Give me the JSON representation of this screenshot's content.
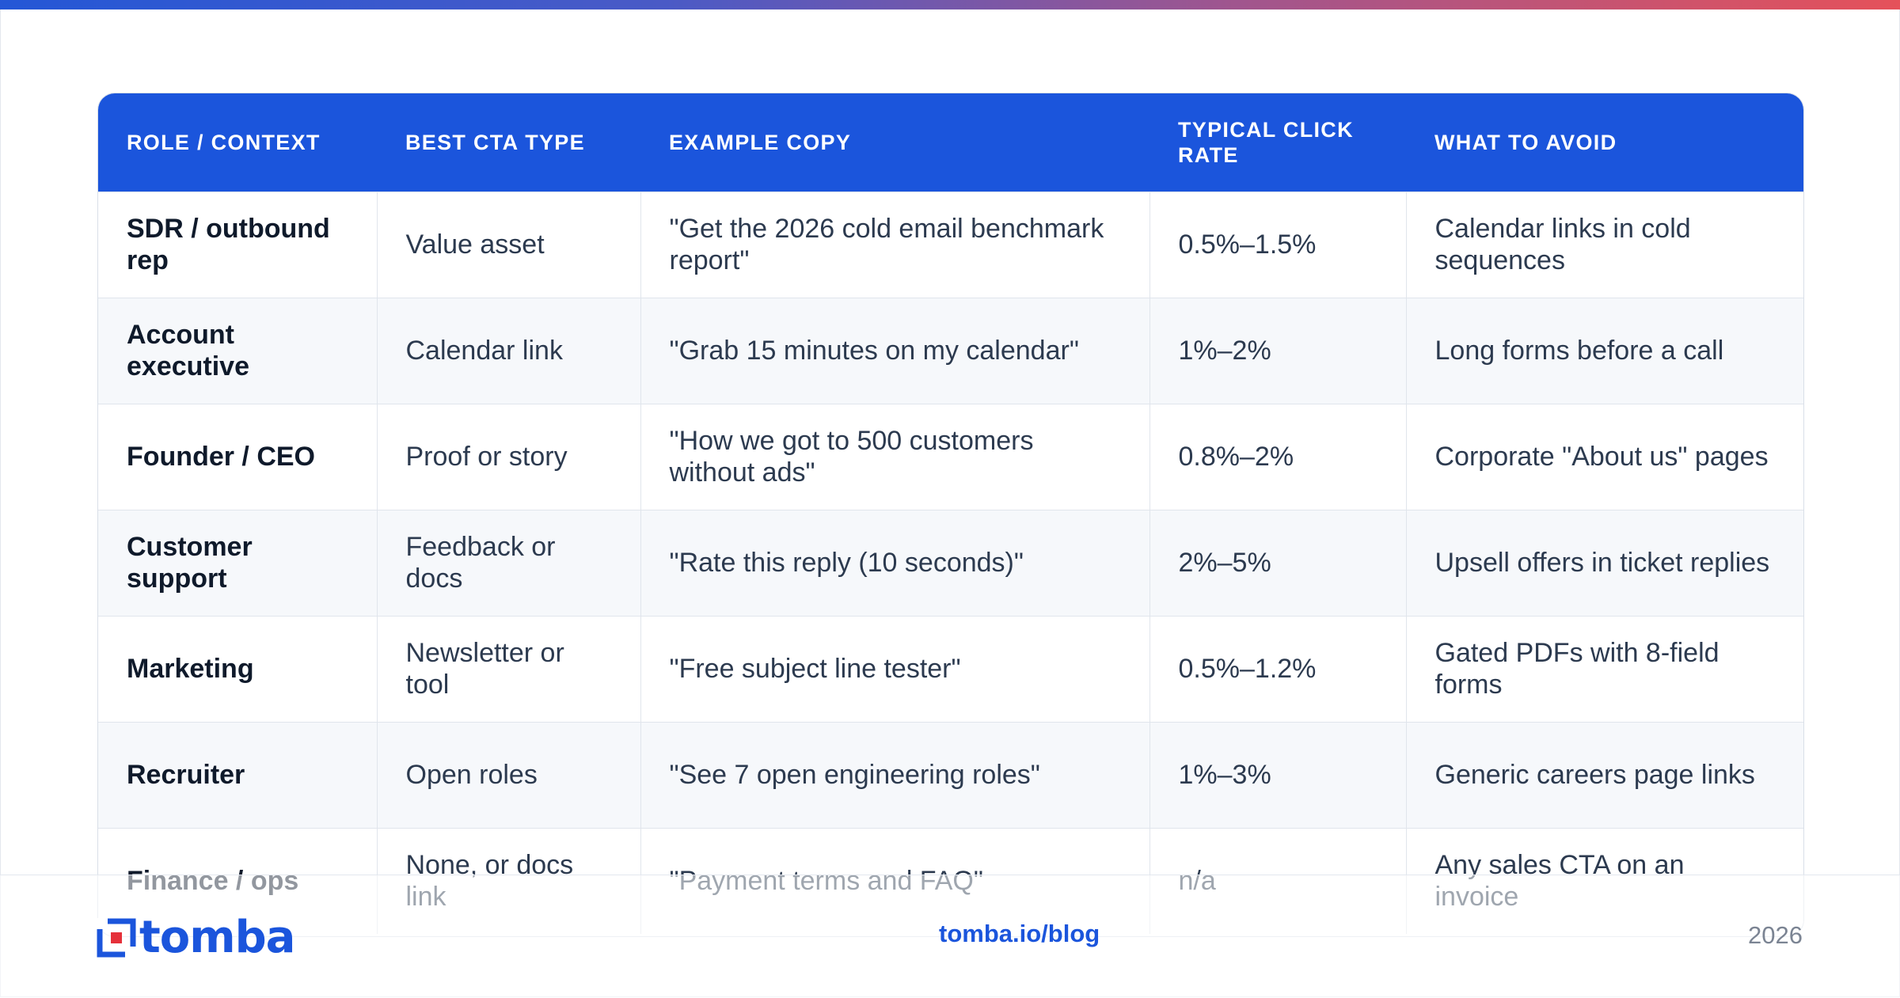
{
  "colors": {
    "accent": "#1b55dc",
    "header_bg": "#1b55dc",
    "row_alt": "#f6f8fb",
    "gradient": [
      "#2457d6",
      "#e5525a"
    ]
  },
  "table": {
    "headers": [
      "ROLE / CONTEXT",
      "BEST CTA TYPE",
      "EXAMPLE COPY",
      "TYPICAL CLICK RATE",
      "WHAT TO AVOID"
    ],
    "rows": [
      [
        "SDR / outbound rep",
        "Value asset",
        "\"Get the 2026 cold email benchmark report\"",
        "0.5%–1.5%",
        "Calendar links in cold sequences"
      ],
      [
        "Account executive",
        "Calendar link",
        "\"Grab 15 minutes on my calendar\"",
        "1%–2%",
        "Long forms before a call"
      ],
      [
        "Founder / CEO",
        "Proof or story",
        "\"How we got to 500 customers without ads\"",
        "0.8%–2%",
        "Corporate \"About us\" pages"
      ],
      [
        "Customer support",
        "Feedback or docs",
        "\"Rate this reply (10 seconds)\"",
        "2%–5%",
        "Upsell offers in ticket replies"
      ],
      [
        "Marketing",
        "Newsletter or tool",
        "\"Free subject line tester\"",
        "0.5%–1.2%",
        "Gated PDFs with 8-field forms"
      ],
      [
        "Recruiter",
        "Open roles",
        "\"See 7 open engineering roles\"",
        "1%–3%",
        "Generic careers page links"
      ],
      [
        "Finance / ops",
        "None, or docs link",
        "\"Payment terms and FAQ\"",
        "n/a",
        "Any sales CTA on an invoice"
      ]
    ]
  },
  "footer": {
    "logo_text": "tomba",
    "logo_icon": "tomba-logo-icon",
    "link": "tomba.io/blog",
    "year": "2026"
  }
}
